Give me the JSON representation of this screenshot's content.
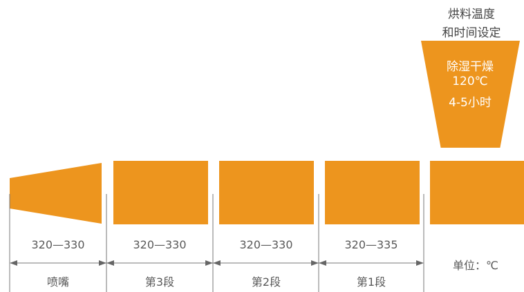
{
  "header": {
    "title_line1": "烘料温度",
    "title_line2": "和时间设定"
  },
  "hopper": {
    "line1": "除湿干燥",
    "line2": "120℃",
    "line3": "4-5小时"
  },
  "segments": [
    {
      "range": "320—330",
      "name": "喷嘴"
    },
    {
      "range": "320—330",
      "name": "第3段"
    },
    {
      "range": "320—330",
      "name": "第2段"
    },
    {
      "range": "320—335",
      "name": "第1段"
    }
  ],
  "unit_label": "单位：℃",
  "colors": {
    "accent": "#ED951E",
    "line": "#777777",
    "text": "#595959"
  }
}
